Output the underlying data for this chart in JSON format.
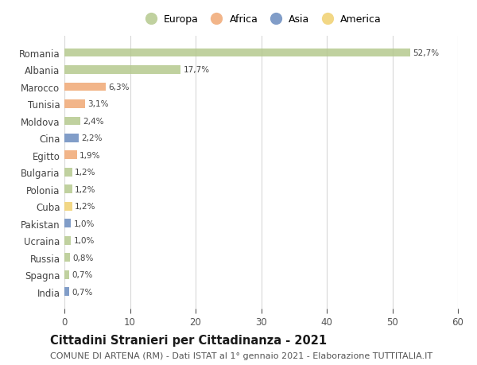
{
  "categories": [
    "Romania",
    "Albania",
    "Marocco",
    "Tunisia",
    "Moldova",
    "Cina",
    "Egitto",
    "Bulgaria",
    "Polonia",
    "Cuba",
    "Pakistan",
    "Ucraina",
    "Russia",
    "Spagna",
    "India"
  ],
  "values": [
    52.7,
    17.7,
    6.3,
    3.1,
    2.4,
    2.2,
    1.9,
    1.2,
    1.2,
    1.2,
    1.0,
    1.0,
    0.8,
    0.7,
    0.7
  ],
  "labels": [
    "52,7%",
    "17,7%",
    "6,3%",
    "3,1%",
    "2,4%",
    "2,2%",
    "1,9%",
    "1,2%",
    "1,2%",
    "1,2%",
    "1,0%",
    "1,0%",
    "0,8%",
    "0,7%",
    "0,7%"
  ],
  "continents": [
    "Europa",
    "Europa",
    "Africa",
    "Africa",
    "Europa",
    "Asia",
    "Africa",
    "Europa",
    "Europa",
    "America",
    "Asia",
    "Europa",
    "Europa",
    "Europa",
    "Asia"
  ],
  "colors": {
    "Europa": "#b5c98e",
    "Africa": "#f0a875",
    "Asia": "#6b8cbf",
    "America": "#f0d070"
  },
  "legend_order": [
    "Europa",
    "Africa",
    "Asia",
    "America"
  ],
  "xlim": [
    0,
    60
  ],
  "xticks": [
    0,
    10,
    20,
    30,
    40,
    50,
    60
  ],
  "title": "Cittadini Stranieri per Cittadinanza - 2021",
  "subtitle": "COMUNE DI ARTENA (RM) - Dati ISTAT al 1° gennaio 2021 - Elaborazione TUTTITALIA.IT",
  "background_color": "#ffffff",
  "grid_color": "#d8d8d8",
  "title_fontsize": 10.5,
  "subtitle_fontsize": 8,
  "bar_height": 0.5,
  "label_fontsize": 7.5,
  "ytick_fontsize": 8.5,
  "xtick_fontsize": 8.5,
  "legend_fontsize": 9
}
